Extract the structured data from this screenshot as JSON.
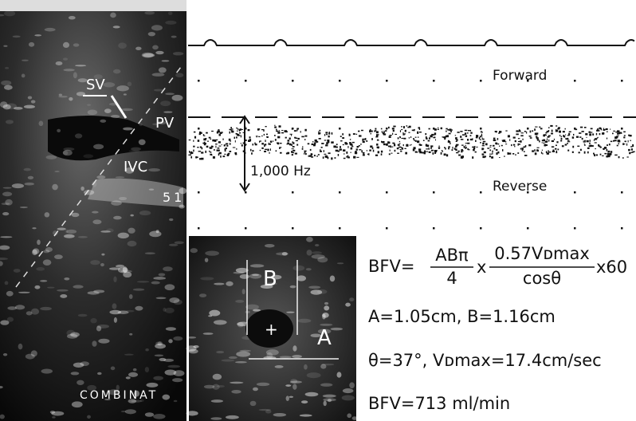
{
  "ultrasound_labels": {
    "sv": "SV",
    "pv": "PV",
    "ivc": "IVC",
    "depth": "51",
    "mode": "COMBINAT"
  },
  "doppler": {
    "forward": "Forward",
    "reverse": "Reverse",
    "scale": "1,000 Hz"
  },
  "cross_section": {
    "b": "B",
    "center": "+",
    "a": "A"
  },
  "formula": {
    "lhs": "BFV=",
    "numerator1": "ABπ",
    "denominator1": "4",
    "times1": "x",
    "numerator2": "0.57Vᴅmax",
    "denominator2": "cosθ",
    "times2": "x60"
  },
  "results": {
    "line1": "A=1.05cm, B=1.16cm",
    "line2": "θ=37°, Vᴅmax=17.4cm/sec",
    "line3": "BFV=713 ml/min"
  }
}
